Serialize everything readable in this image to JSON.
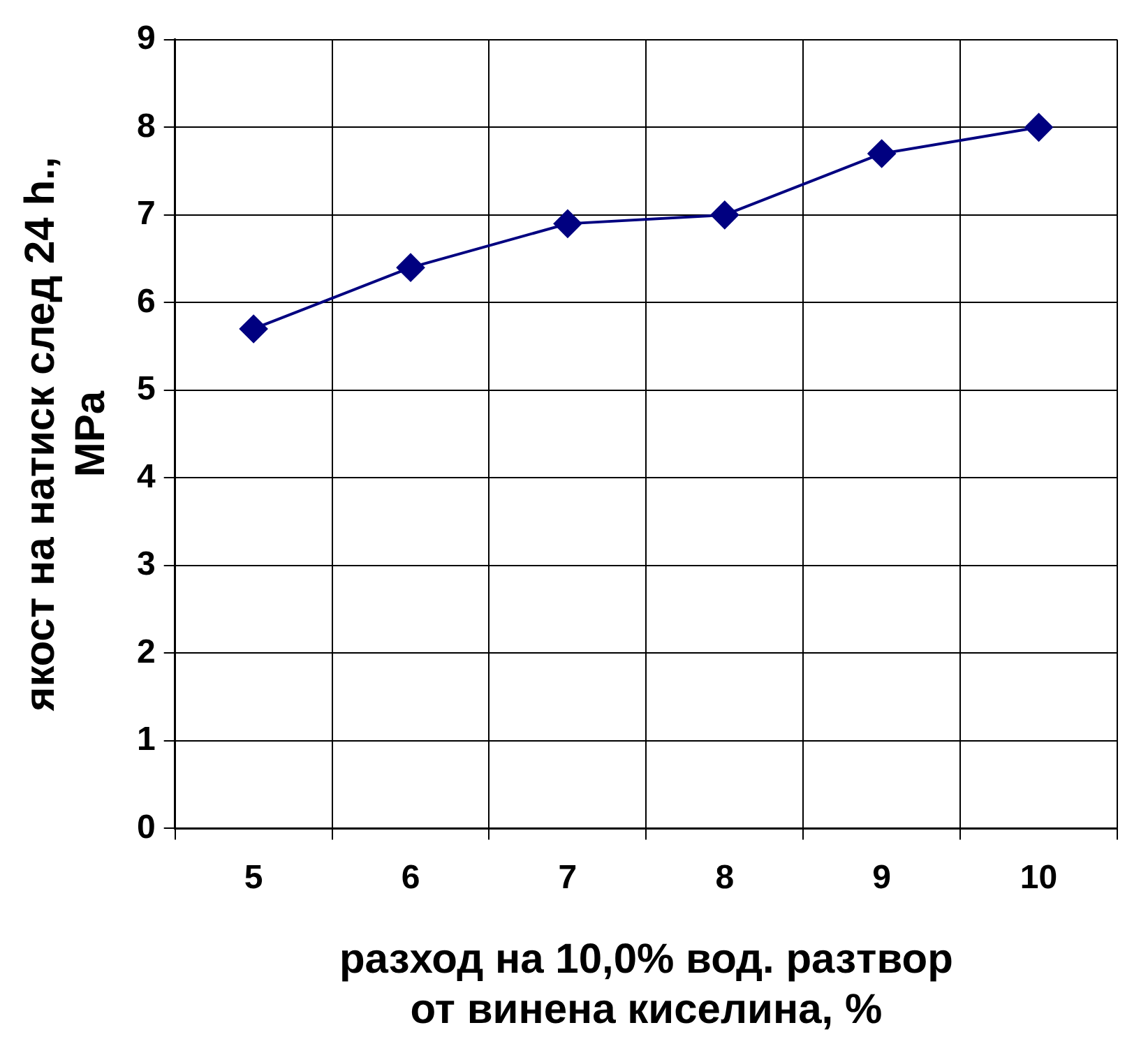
{
  "chart_data": {
    "type": "line",
    "xlabel": "разход на 10,0% вод. разтвор\nот винена киселина, %",
    "ylabel": "якост на натиск след 24 h.,\nMPa",
    "categories": [
      "5",
      "6",
      "7",
      "8",
      "9",
      "10"
    ],
    "series": [
      {
        "color": "#000080",
        "values": [
          5.7,
          6.4,
          6.9,
          7.0,
          7.7,
          8.0
        ]
      }
    ],
    "ylim": [
      0,
      9
    ],
    "yticks": [
      0,
      1,
      2,
      3,
      4,
      5,
      6,
      7,
      8,
      9
    ],
    "grid": true,
    "legend": false,
    "marker": "diamond",
    "line_style": "solid"
  }
}
